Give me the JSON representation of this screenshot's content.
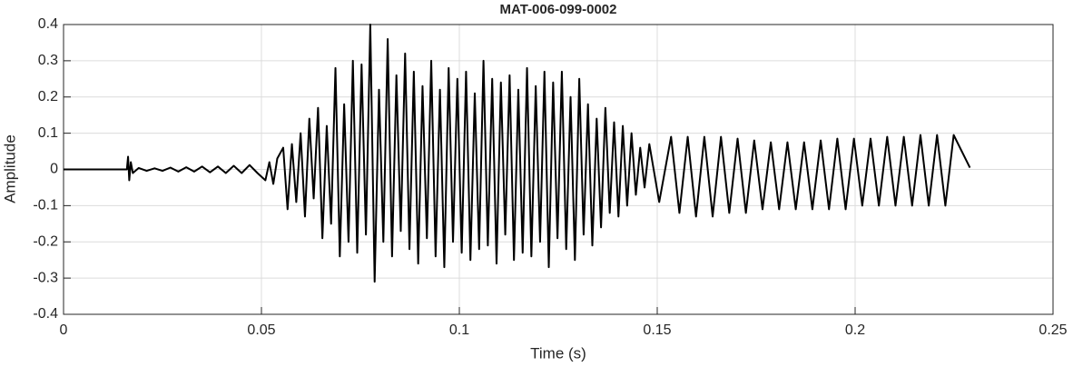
{
  "chart_data": {
    "type": "line",
    "title": "MAT-006-099-0002",
    "x_label": "Time (s)",
    "y_label": "Amplitude",
    "color": "#000000",
    "grid": true,
    "xlim": [
      0,
      0.25
    ],
    "xticks": [
      0,
      0.05,
      0.1,
      0.15,
      0.2,
      0.25
    ],
    "ylim": [
      -0.4,
      0.4
    ],
    "yticks": [
      -0.4,
      -0.3,
      -0.2,
      -0.1,
      0,
      0.1,
      0.2,
      0.3,
      0.4
    ],
    "x": [
      0,
      0.016,
      0.0163,
      0.0166,
      0.017,
      0.0175,
      0.019,
      0.021,
      0.023,
      0.025,
      0.027,
      0.029,
      0.031,
      0.033,
      0.035,
      0.037,
      0.039,
      0.041,
      0.043,
      0.045,
      0.047,
      0.049,
      0.051,
      0.052,
      0.053,
      0.054,
      0.0555,
      0.0566,
      0.0577,
      0.0588,
      0.0599,
      0.061,
      0.0621,
      0.0632,
      0.0643,
      0.0654,
      0.0665,
      0.0676,
      0.0687,
      0.0698,
      0.0709,
      0.072,
      0.0731,
      0.0742,
      0.0753,
      0.0764,
      0.0775,
      0.0786,
      0.0797,
      0.0808,
      0.0819,
      0.083,
      0.0841,
      0.0852,
      0.0863,
      0.0874,
      0.0885,
      0.0896,
      0.0907,
      0.0918,
      0.0929,
      0.094,
      0.0951,
      0.0962,
      0.0973,
      0.0984,
      0.0995,
      0.1006,
      0.1017,
      0.1028,
      0.1039,
      0.105,
      0.1061,
      0.1072,
      0.1083,
      0.1094,
      0.1105,
      0.1116,
      0.1127,
      0.1138,
      0.1149,
      0.116,
      0.1171,
      0.1182,
      0.1193,
      0.1204,
      0.1215,
      0.1226,
      0.1237,
      0.1248,
      0.1259,
      0.127,
      0.1281,
      0.1292,
      0.1303,
      0.1314,
      0.1325,
      0.1336,
      0.1347,
      0.1358,
      0.1369,
      0.138,
      0.1391,
      0.1402,
      0.1413,
      0.1424,
      0.1435,
      0.1446,
      0.1457,
      0.1468,
      0.148,
      0.1505,
      0.1535,
      0.1556,
      0.1577,
      0.1598,
      0.1619,
      0.164,
      0.1661,
      0.1682,
      0.1703,
      0.1724,
      0.1745,
      0.1766,
      0.1787,
      0.1808,
      0.1829,
      0.185,
      0.1871,
      0.1892,
      0.1913,
      0.1934,
      0.1955,
      0.1976,
      0.1997,
      0.2018,
      0.2039,
      0.206,
      0.2081,
      0.2102,
      0.2123,
      0.2144,
      0.2165,
      0.2186,
      0.2207,
      0.2228,
      0.2249,
      0.229
    ],
    "values": [
      0,
      0,
      0.035,
      -0.03,
      0.02,
      -0.01,
      0.004,
      -0.004,
      0.003,
      -0.004,
      0.005,
      -0.006,
      0.006,
      -0.006,
      0.008,
      -0.008,
      0.008,
      -0.01,
      0.01,
      -0.01,
      0.012,
      -0.01,
      -0.03,
      0.02,
      -0.04,
      0.03,
      0.06,
      -0.11,
      0.07,
      -0.09,
      0.1,
      -0.13,
      0.14,
      -0.08,
      0.17,
      -0.19,
      0.12,
      -0.15,
      0.28,
      -0.24,
      0.18,
      -0.2,
      0.3,
      -0.23,
      0.29,
      -0.18,
      0.4,
      -0.31,
      0.22,
      -0.2,
      0.36,
      -0.24,
      0.26,
      -0.17,
      0.32,
      -0.22,
      0.27,
      -0.26,
      0.23,
      -0.19,
      0.3,
      -0.24,
      0.22,
      -0.27,
      0.28,
      -0.2,
      0.25,
      -0.23,
      0.27,
      -0.25,
      0.21,
      -0.22,
      0.3,
      -0.21,
      0.25,
      -0.26,
      0.24,
      -0.18,
      0.26,
      -0.25,
      0.22,
      -0.23,
      0.28,
      -0.24,
      0.23,
      -0.2,
      0.27,
      -0.27,
      0.24,
      -0.19,
      0.27,
      -0.22,
      0.2,
      -0.25,
      0.25,
      -0.18,
      0.18,
      -0.21,
      0.14,
      -0.16,
      0.17,
      -0.12,
      0.13,
      -0.13,
      0.12,
      -0.1,
      0.1,
      -0.07,
      0.06,
      -0.05,
      0.07,
      -0.09,
      0.09,
      -0.12,
      0.09,
      -0.13,
      0.09,
      -0.13,
      0.09,
      -0.12,
      0.085,
      -0.12,
      0.08,
      -0.11,
      0.075,
      -0.11,
      0.075,
      -0.11,
      0.075,
      -0.11,
      0.08,
      -0.11,
      0.085,
      -0.11,
      0.085,
      -0.1,
      0.085,
      -0.1,
      0.09,
      -0.1,
      0.09,
      -0.1,
      0.095,
      -0.1,
      0.095,
      -0.1,
      0.095,
      0.005
    ]
  }
}
